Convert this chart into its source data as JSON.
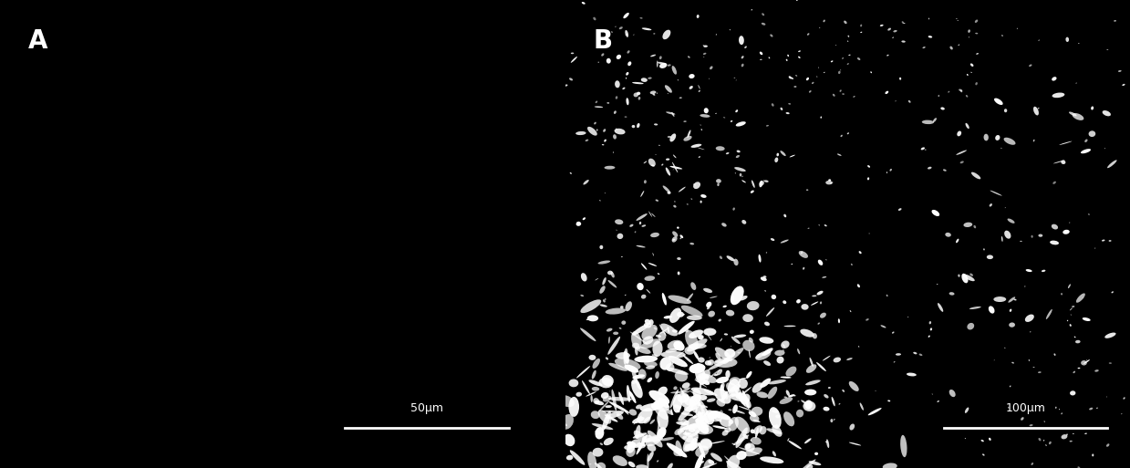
{
  "background_color": "#000000",
  "panel_A_label": "A",
  "panel_B_label": "B",
  "label_color": "#ffffff",
  "label_fontsize": 20,
  "scale_bar_A_text": "50μm",
  "scale_bar_B_text": "100μm",
  "scale_bar_color": "#ffffff",
  "scale_bar_text_color": "#ffffff",
  "scale_bar_fontsize": 9,
  "fig_width": 12.39,
  "fig_height": 5.13,
  "dpi": 100
}
